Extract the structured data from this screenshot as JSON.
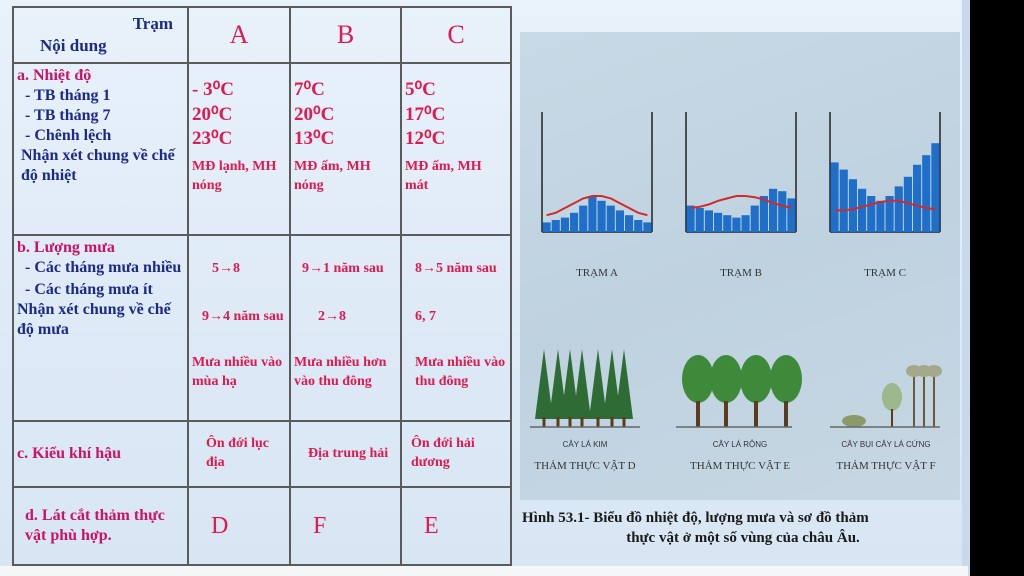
{
  "table": {
    "header": {
      "station_label": "Trạm",
      "content_label": "Nội dung",
      "cols": [
        "A",
        "B",
        "C"
      ]
    },
    "temp": {
      "title": "a. Nhiệt độ",
      "rows": [
        {
          "label": "- TB tháng 1",
          "values": [
            "- 3⁰C",
            "7⁰C",
            "5⁰C"
          ]
        },
        {
          "label": "- TB  tháng 7",
          "values": [
            "20⁰C",
            "20⁰C",
            "17⁰C"
          ]
        },
        {
          "label": "- Chênh lệch",
          "values": [
            "23⁰C",
            "13⁰C",
            "12⁰C"
          ]
        }
      ],
      "remark_label": "Nhận xét chung về chế độ nhiệt",
      "remarks": [
        "MĐ lạnh, MH nóng",
        "MĐ ấm, MH nóng",
        "MĐ ấm, MH mát"
      ]
    },
    "rain": {
      "title": "b. Lượng mưa",
      "many_label": "- Các tháng mưa nhiều",
      "many": [
        "5→8",
        "9→1 năm sau",
        "8→5 năm sau"
      ],
      "few_label": "- Các tháng mưa ít",
      "few": [
        "9→4 năm sau",
        "2→8",
        "6, 7"
      ],
      "remark_label": "Nhận xét chung về chế độ mưa",
      "remarks": [
        "Mưa nhiều vào mùa hạ",
        "Mưa nhiều hơn vào thu đông",
        "Mưa nhiều vào thu đông"
      ]
    },
    "climate": {
      "label": "c. Kiểu khí hậu",
      "values": [
        "Ôn đới lục địa",
        "Địa trung hải",
        "Ôn đới hải dương"
      ]
    },
    "veg": {
      "label": "d. Lát cắt thảm thực vật phù hợp.",
      "values": [
        "D",
        "F",
        "E"
      ]
    }
  },
  "figure": {
    "stations": [
      "TRẠM A",
      "TRẠM B",
      "TRẠM C"
    ],
    "vegetation": [
      {
        "type": "CÂY LÁ KIM",
        "label": "THẢM THỰC VẬT D"
      },
      {
        "type": "CÂY LÁ RỘNG",
        "label": "THẢM THỰC VẬT E"
      },
      {
        "type": "CÂY BỤI  CÂY LÁ CỨNG",
        "label": "THẢM THỰC VẬT F"
      }
    ],
    "caption_line1": "Hình 53.1-  Biểu đồ nhiệt độ, lượng mưa và sơ đồ thảm",
    "caption_line2": "thực vật ở một số vùng của châu Âu.",
    "colors": {
      "bar": "#1f6fc9",
      "temp_line": "#d12a2a",
      "tree_green": "#3e8a3a"
    }
  }
}
